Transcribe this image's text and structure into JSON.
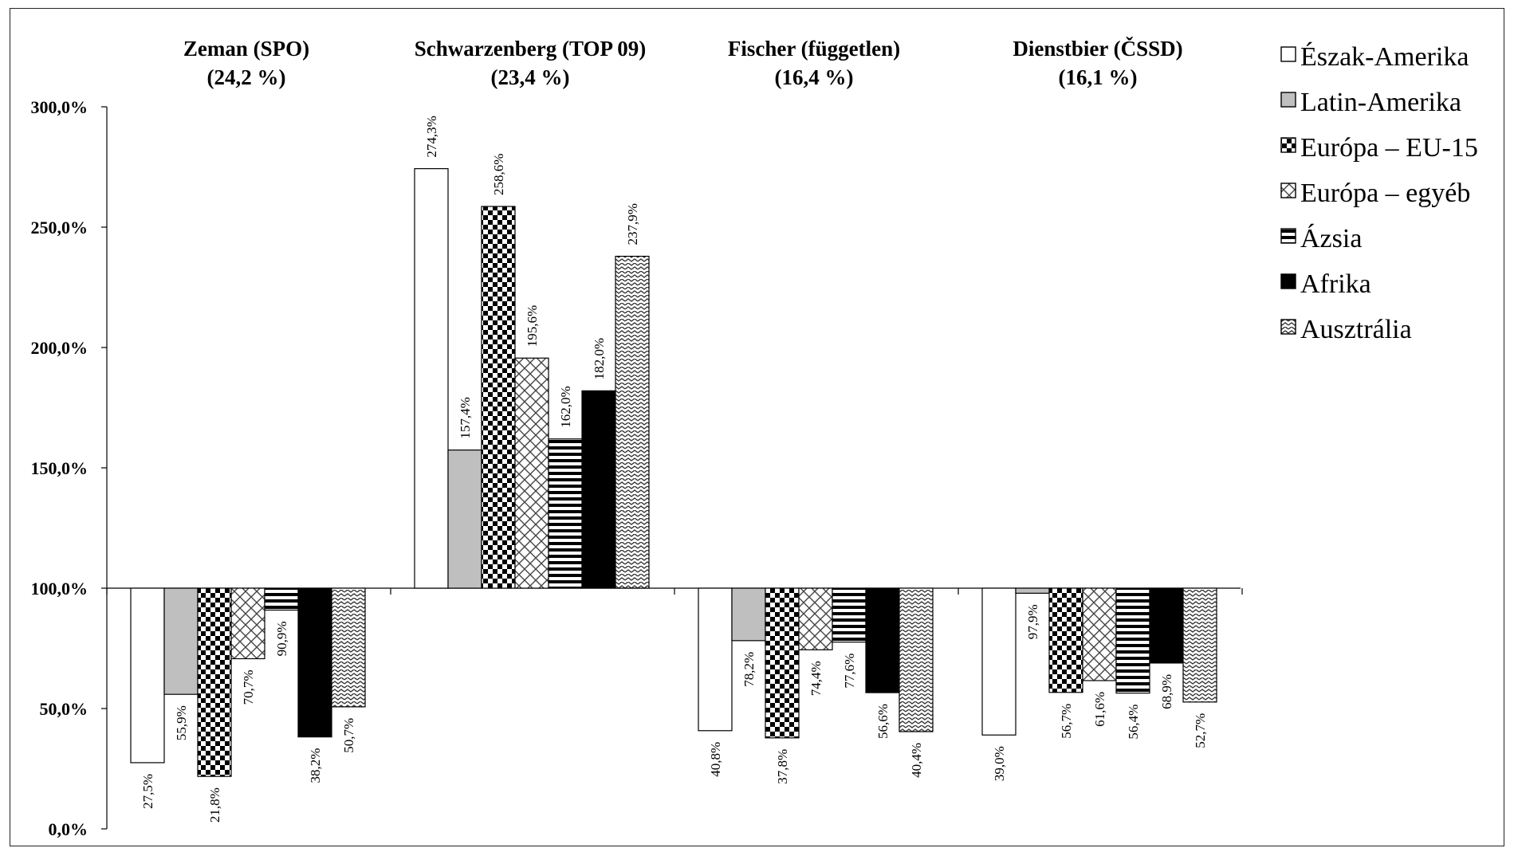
{
  "chart_data": {
    "type": "bar",
    "baseline": 100,
    "ylim": [
      0,
      300
    ],
    "yticks": [
      0,
      50,
      100,
      150,
      200,
      250,
      300
    ],
    "ytick_labels": [
      "0,0%",
      "50,0%",
      "100,0%",
      "150,0%",
      "200,0%",
      "250,0%",
      "300,0%"
    ],
    "categories": [
      {
        "line1": "Zeman (SPO)",
        "line2": "(24,2 %)"
      },
      {
        "line1": "Schwarzenberg (TOP 09)",
        "line2": "(23,4 %)"
      },
      {
        "line1": "Fischer (független)",
        "line2": "(16,4 %)"
      },
      {
        "line1": "Dienstbier (ČSSD)",
        "line2": "(16,1 %)"
      }
    ],
    "series": [
      {
        "name": "Észak-Amerika",
        "pattern": "white",
        "values": [
          27.5,
          274.3,
          40.8,
          39.0
        ],
        "labels": [
          "27,5%",
          "274,3%",
          "40,8%",
          "39,0%"
        ]
      },
      {
        "name": "Latin-Amerika",
        "pattern": "gray",
        "values": [
          55.9,
          157.4,
          78.2,
          97.9
        ],
        "labels": [
          "55,9%",
          "157,4%",
          "78,2%",
          "97,9%"
        ]
      },
      {
        "name": "Európa – EU-15",
        "pattern": "checker",
        "values": [
          21.8,
          258.6,
          37.8,
          56.7
        ],
        "labels": [
          "21,8%",
          "258,6%",
          "37,8%",
          "56,7%"
        ]
      },
      {
        "name": "Európa – egyéb",
        "pattern": "crosshatch",
        "values": [
          70.7,
          195.6,
          74.4,
          61.6
        ],
        "labels": [
          "70,7%",
          "195,6%",
          "74,4%",
          "61,6%"
        ]
      },
      {
        "name": "Ázsia",
        "pattern": "hstripes",
        "values": [
          90.9,
          162.0,
          77.6,
          56.4
        ],
        "labels": [
          "90,9%",
          "162,0%",
          "77,6%",
          "56,4%"
        ]
      },
      {
        "name": "Afrika",
        "pattern": "black",
        "values": [
          38.2,
          182.0,
          56.6,
          68.9
        ],
        "labels": [
          "38,2%",
          "182,0%",
          "56,6%",
          "68,9%"
        ]
      },
      {
        "name": "Ausztrália",
        "pattern": "zigzag",
        "values": [
          50.7,
          237.9,
          40.4,
          52.7
        ],
        "labels": [
          "50,7%",
          "237,9%",
          "40,4%",
          "52,7%"
        ]
      }
    ],
    "grid": false,
    "legend_position": "right"
  }
}
